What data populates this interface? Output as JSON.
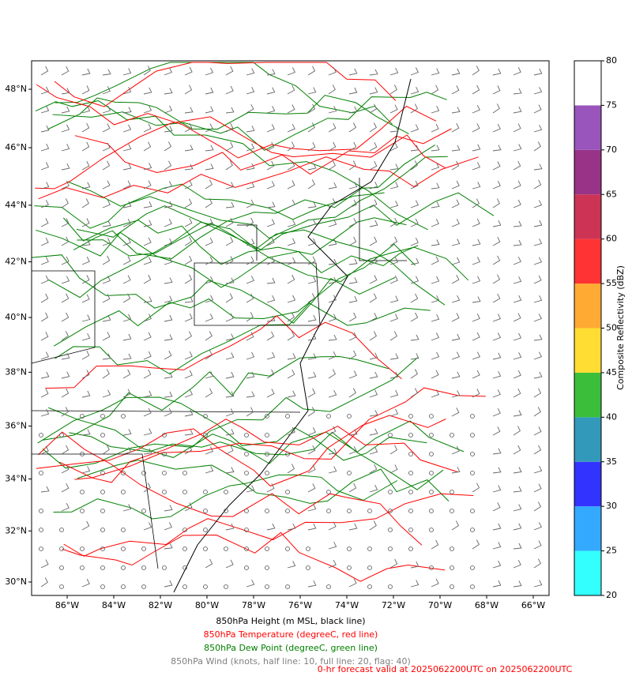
{
  "map": {
    "lon_ticks": [
      {
        "value": -86,
        "label": "86°W"
      },
      {
        "value": -84,
        "label": "84°W"
      },
      {
        "value": -82,
        "label": "82°W"
      },
      {
        "value": -80,
        "label": "80°W"
      },
      {
        "value": -78,
        "label": "78°W"
      },
      {
        "value": -76,
        "label": "76°W"
      },
      {
        "value": -74,
        "label": "74°W"
      },
      {
        "value": -72,
        "label": "72°W"
      },
      {
        "value": -70,
        "label": "70°W"
      },
      {
        "value": -68,
        "label": "68°W"
      },
      {
        "value": -66,
        "label": "66°W"
      }
    ],
    "lat_ticks": [
      {
        "value": 48,
        "label": "48°N"
      },
      {
        "value": 46,
        "label": "46°N"
      },
      {
        "value": 44,
        "label": "44°N"
      },
      {
        "value": 42,
        "label": "42°N"
      },
      {
        "value": 40,
        "label": "40°N"
      },
      {
        "value": 38,
        "label": "38°N"
      },
      {
        "value": 36,
        "label": "36°N"
      },
      {
        "value": 34,
        "label": "34°N"
      },
      {
        "value": 32,
        "label": "32°N"
      },
      {
        "value": 30,
        "label": "30°N"
      }
    ]
  },
  "colorbar": {
    "label": "Composite Reflectivity (dBZ)",
    "range": [
      20,
      80
    ],
    "ticks": [
      20,
      25,
      30,
      35,
      40,
      45,
      50,
      55,
      60,
      65,
      70,
      75,
      80
    ],
    "colors": [
      "#33ffff",
      "#33aaff",
      "#3333ff",
      "#3399bb",
      "#3bbf3b",
      "#ffdd33",
      "#ffaa33",
      "#ff3333",
      "#cc3355",
      "#993388",
      "#9955bb",
      "#ffffff"
    ]
  },
  "captions": [
    "850hPa Height (m MSL, black line)",
    "850hPa Temperature (degreeC, red line)",
    "850hPa Dew Point (degreeC, green line)",
    "850hPa Wind (knots, half line: 10, full line: 20, flag: 40)"
  ],
  "valid_time": "0-hr forecast valid at 2025062200UTC on 2025062200UTC"
}
